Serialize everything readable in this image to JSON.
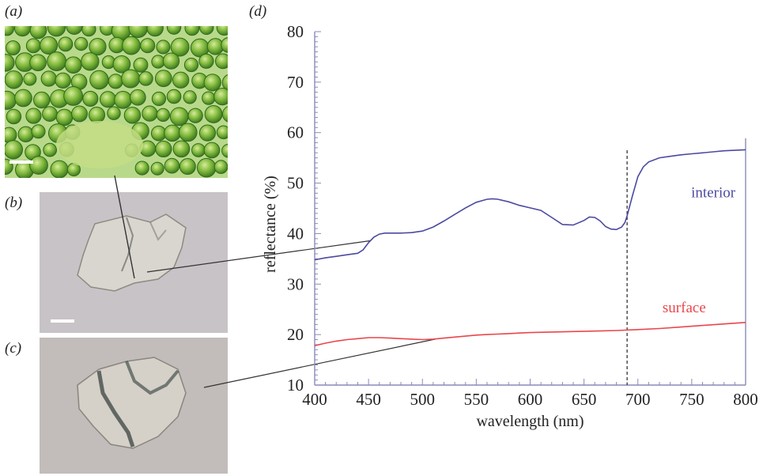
{
  "panels": {
    "a": "(a)",
    "b": "(b)",
    "c": "(c)",
    "d": "(d)"
  },
  "colors": {
    "interior": "#4b4aa0",
    "surface": "#e8474c",
    "axis": "#8a8ab8",
    "dashed": "#333333",
    "connector": "#333333"
  },
  "chart_data": {
    "type": "line",
    "xlabel": "wavelength (nm)",
    "ylabel": "reflectance (%)",
    "xlim": [
      400,
      800
    ],
    "ylim": [
      10,
      80
    ],
    "xticks": [
      400,
      450,
      500,
      550,
      600,
      650,
      700,
      750,
      800
    ],
    "yticks": [
      10,
      20,
      30,
      40,
      50,
      60,
      70,
      80
    ],
    "grid": false,
    "legend": "inline",
    "vline": 690,
    "series": [
      {
        "name": "interior",
        "label_at": [
          770,
          47.2
        ],
        "x": [
          400,
          410,
          420,
          430,
          440,
          445,
          450,
          455,
          460,
          465,
          470,
          480,
          490,
          500,
          510,
          520,
          530,
          540,
          550,
          560,
          565,
          570,
          580,
          590,
          600,
          610,
          620,
          630,
          640,
          650,
          655,
          660,
          665,
          670,
          675,
          680,
          685,
          688,
          690,
          695,
          700,
          705,
          710,
          720,
          730,
          740,
          750,
          760,
          770,
          780,
          790,
          800
        ],
        "y": [
          34.8,
          35.2,
          35.5,
          35.8,
          36.1,
          36.8,
          38.2,
          39.3,
          39.9,
          40.1,
          40.1,
          40.1,
          40.2,
          40.5,
          41.3,
          42.5,
          43.8,
          45.1,
          46.2,
          46.8,
          46.9,
          46.8,
          46.3,
          45.6,
          45.1,
          44.6,
          43.2,
          41.8,
          41.7,
          42.6,
          43.3,
          43.2,
          42.5,
          41.4,
          40.9,
          40.8,
          41.3,
          42.2,
          43.5,
          47.5,
          51.3,
          53.2,
          54.2,
          55.0,
          55.3,
          55.6,
          55.8,
          56.0,
          56.2,
          56.4,
          56.5,
          56.6
        ]
      },
      {
        "name": "surface",
        "label_at": [
          743,
          24.4
        ],
        "x": [
          400,
          410,
          420,
          430,
          440,
          450,
          460,
          470,
          480,
          490,
          500,
          510,
          520,
          530,
          540,
          550,
          560,
          570,
          580,
          590,
          600,
          620,
          640,
          660,
          680,
          700,
          720,
          740,
          760,
          780,
          800
        ],
        "y": [
          17.8,
          18.3,
          18.7,
          19.0,
          19.2,
          19.4,
          19.4,
          19.3,
          19.2,
          19.1,
          19.0,
          19.1,
          19.3,
          19.5,
          19.7,
          19.9,
          20.0,
          20.1,
          20.2,
          20.3,
          20.4,
          20.5,
          20.6,
          20.7,
          20.8,
          21.0,
          21.2,
          21.5,
          21.8,
          22.1,
          22.4
        ]
      }
    ]
  }
}
